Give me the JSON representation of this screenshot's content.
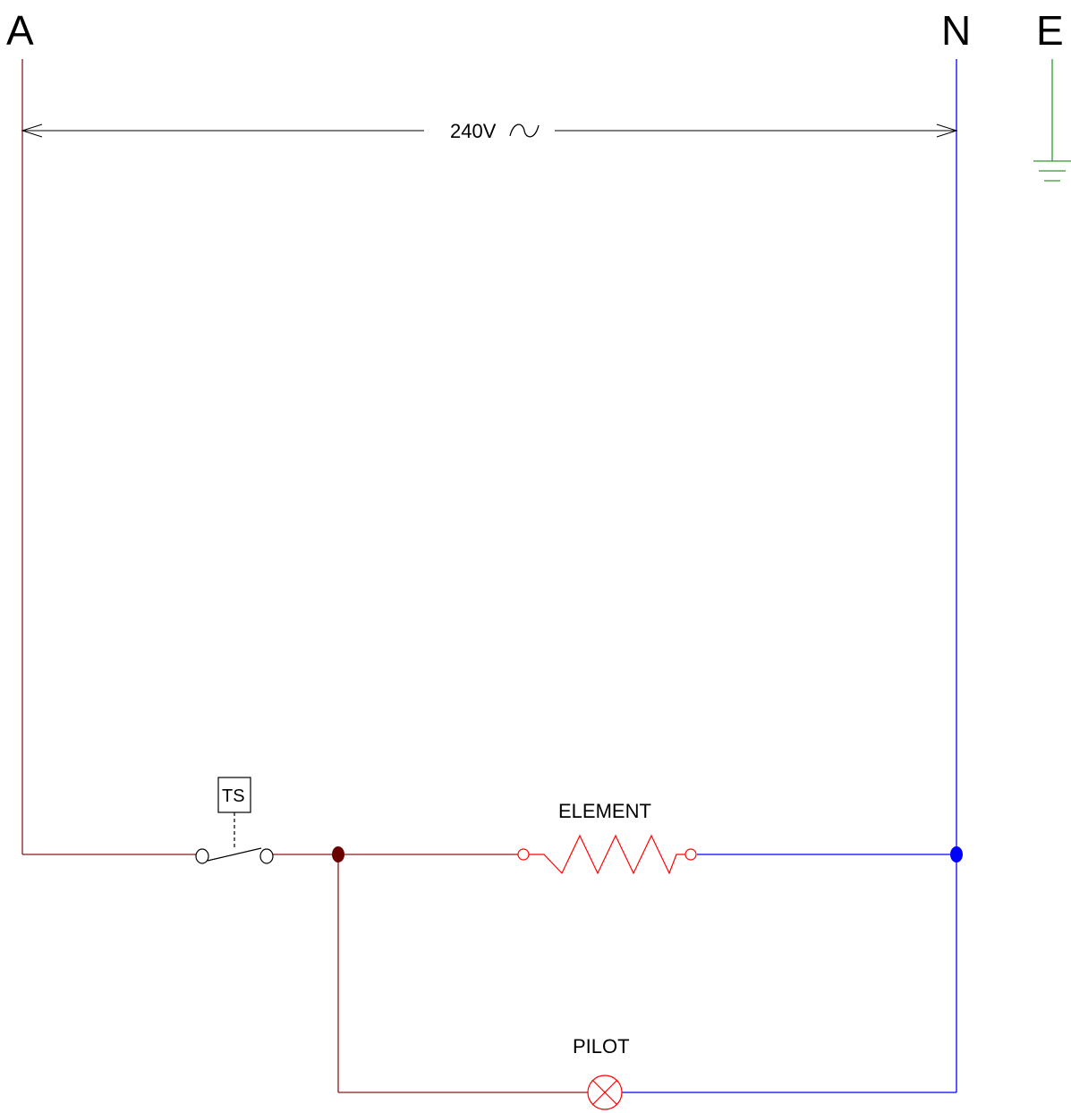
{
  "terminals": {
    "active": "A",
    "neutral": "N",
    "earth": "E"
  },
  "supply": {
    "voltage_label": "240V",
    "ac_symbol": "∿"
  },
  "components": {
    "thermostat": "TS",
    "element": "ELEMENT",
    "pilot": "PILOT"
  },
  "colors": {
    "active_wire": "#8b1a1a",
    "neutral_wire": "#0000ff",
    "earth_wire": "#2e9a2e",
    "element": "#ff0000",
    "pilot": "#ff0000",
    "dimension": "#000000",
    "active_junction": "#6b0000",
    "neutral_junction": "#0000ff"
  }
}
